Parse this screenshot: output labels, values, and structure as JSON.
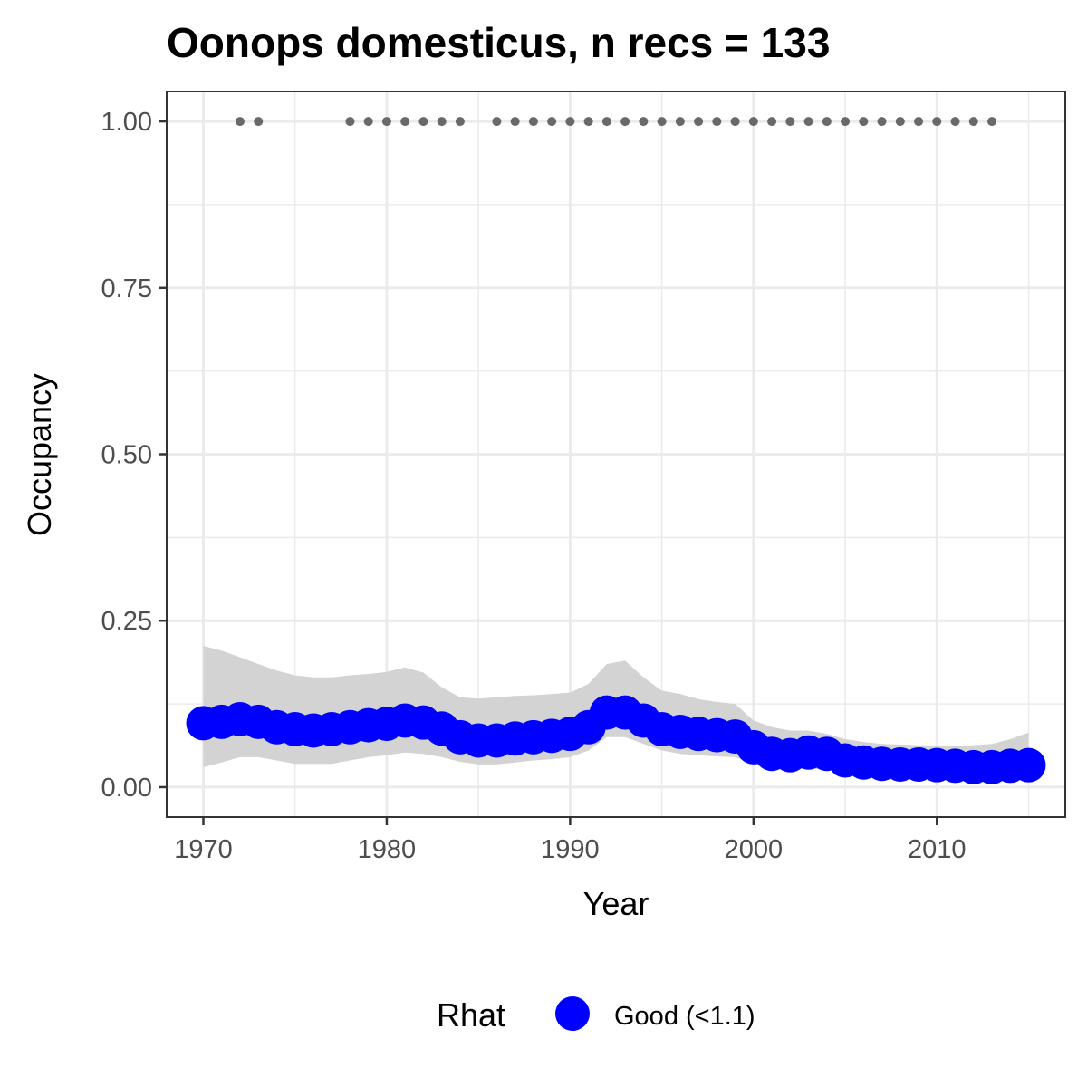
{
  "chart_data": {
    "type": "line",
    "title": "Oonops domesticus, n recs = 133",
    "xlabel": "Year",
    "ylabel": "Occupancy",
    "xlim": [
      1968,
      2017
    ],
    "ylim": [
      -0.045,
      1.045
    ],
    "x_ticks": [
      1970,
      1980,
      1990,
      2000,
      2010
    ],
    "x_tick_labels": [
      "1970",
      "1980",
      "1990",
      "2000",
      "2010"
    ],
    "y_ticks": [
      0,
      0.25,
      0.5,
      0.75,
      1.0
    ],
    "y_tick_labels": [
      "0.00",
      "0.25",
      "0.50",
      "0.75",
      "1.00"
    ],
    "grid": true,
    "series": [
      {
        "name": "Occupancy",
        "x": [
          1970,
          1971,
          1972,
          1973,
          1974,
          1975,
          1976,
          1977,
          1978,
          1979,
          1980,
          1981,
          1982,
          1983,
          1984,
          1985,
          1986,
          1987,
          1988,
          1989,
          1990,
          1991,
          1992,
          1993,
          1994,
          1995,
          1996,
          1997,
          1998,
          1999,
          2000,
          2001,
          2002,
          2003,
          2004,
          2005,
          2006,
          2007,
          2008,
          2009,
          2010,
          2011,
          2012,
          2013,
          2014,
          2015
        ],
        "y": [
          0.096,
          0.098,
          0.102,
          0.098,
          0.09,
          0.087,
          0.085,
          0.087,
          0.09,
          0.093,
          0.095,
          0.1,
          0.097,
          0.088,
          0.075,
          0.07,
          0.07,
          0.073,
          0.075,
          0.077,
          0.08,
          0.09,
          0.112,
          0.112,
          0.1,
          0.087,
          0.083,
          0.08,
          0.078,
          0.076,
          0.06,
          0.05,
          0.048,
          0.052,
          0.05,
          0.04,
          0.037,
          0.035,
          0.034,
          0.034,
          0.033,
          0.032,
          0.03,
          0.03,
          0.032,
          0.033
        ],
        "lower": [
          0.03,
          0.037,
          0.045,
          0.045,
          0.04,
          0.035,
          0.035,
          0.035,
          0.04,
          0.045,
          0.048,
          0.052,
          0.05,
          0.045,
          0.038,
          0.034,
          0.034,
          0.037,
          0.04,
          0.042,
          0.045,
          0.055,
          0.075,
          0.075,
          0.065,
          0.055,
          0.05,
          0.048,
          0.046,
          0.045,
          0.035,
          0.028,
          0.026,
          0.028,
          0.026,
          0.022,
          0.02,
          0.019,
          0.018,
          0.017,
          0.017,
          0.016,
          0.015,
          0.015,
          0.015,
          0.015
        ],
        "upper": [
          0.212,
          0.205,
          0.195,
          0.185,
          0.175,
          0.168,
          0.165,
          0.165,
          0.168,
          0.17,
          0.173,
          0.18,
          0.172,
          0.15,
          0.135,
          0.133,
          0.135,
          0.137,
          0.138,
          0.14,
          0.142,
          0.155,
          0.185,
          0.19,
          0.165,
          0.145,
          0.14,
          0.132,
          0.128,
          0.125,
          0.1,
          0.09,
          0.085,
          0.085,
          0.08,
          0.072,
          0.068,
          0.065,
          0.064,
          0.063,
          0.062,
          0.062,
          0.063,
          0.065,
          0.072,
          0.082
        ],
        "color": "#0000ff"
      },
      {
        "name": "Records",
        "x": [
          1972,
          1973,
          1978,
          1979,
          1980,
          1981,
          1982,
          1983,
          1984,
          1986,
          1987,
          1988,
          1989,
          1990,
          1991,
          1992,
          1993,
          1994,
          1995,
          1996,
          1997,
          1998,
          1999,
          2000,
          2001,
          2002,
          2003,
          2004,
          2005,
          2006,
          2007,
          2008,
          2009,
          2010,
          2011,
          2012,
          2013
        ],
        "y": [
          1,
          1,
          1,
          1,
          1,
          1,
          1,
          1,
          1,
          1,
          1,
          1,
          1,
          1,
          1,
          1,
          1,
          1,
          1,
          1,
          1,
          1,
          1,
          1,
          1,
          1,
          1,
          1,
          1,
          1,
          1,
          1,
          1,
          1,
          1,
          1,
          1
        ],
        "color": "#696969"
      }
    ],
    "legend": {
      "title": "Rhat",
      "position": "bottom",
      "entries": [
        {
          "label": "Good (<1.1)",
          "color": "#0000ff"
        }
      ]
    }
  },
  "colors": {
    "ribbon": "#d3d3d3",
    "grid": "#ebebeb",
    "panel_border": "#333333",
    "tick_text": "#4d4d4d"
  }
}
